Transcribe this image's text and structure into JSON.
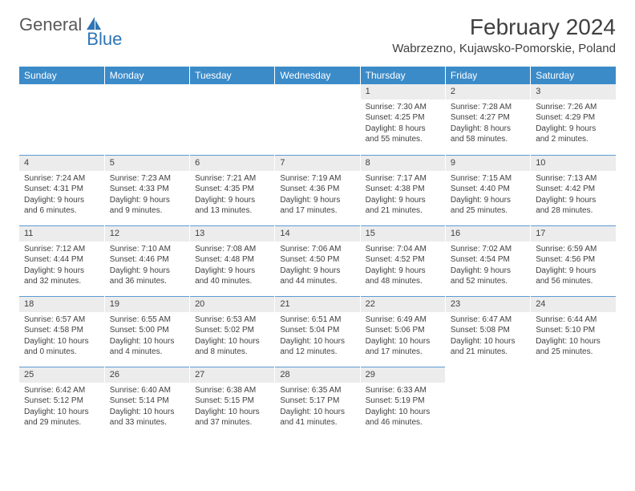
{
  "brand": {
    "word1": "General",
    "word2": "Blue"
  },
  "colors": {
    "header_bg": "#3b8bc9",
    "daynum_bg": "#ececec",
    "row_border": "#5b9bd5",
    "text": "#404040",
    "brand_gray": "#595959",
    "brand_blue": "#2e75b6"
  },
  "title": "February 2024",
  "location": "Wabrzezno, Kujawsko-Pomorskie, Poland",
  "weekdays": [
    "Sunday",
    "Monday",
    "Tuesday",
    "Wednesday",
    "Thursday",
    "Friday",
    "Saturday"
  ],
  "weeks": [
    [
      null,
      null,
      null,
      null,
      {
        "n": "1",
        "sr": "7:30 AM",
        "ss": "4:25 PM",
        "dl": "8 hours and 55 minutes."
      },
      {
        "n": "2",
        "sr": "7:28 AM",
        "ss": "4:27 PM",
        "dl": "8 hours and 58 minutes."
      },
      {
        "n": "3",
        "sr": "7:26 AM",
        "ss": "4:29 PM",
        "dl": "9 hours and 2 minutes."
      }
    ],
    [
      {
        "n": "4",
        "sr": "7:24 AM",
        "ss": "4:31 PM",
        "dl": "9 hours and 6 minutes."
      },
      {
        "n": "5",
        "sr": "7:23 AM",
        "ss": "4:33 PM",
        "dl": "9 hours and 9 minutes."
      },
      {
        "n": "6",
        "sr": "7:21 AM",
        "ss": "4:35 PM",
        "dl": "9 hours and 13 minutes."
      },
      {
        "n": "7",
        "sr": "7:19 AM",
        "ss": "4:36 PM",
        "dl": "9 hours and 17 minutes."
      },
      {
        "n": "8",
        "sr": "7:17 AM",
        "ss": "4:38 PM",
        "dl": "9 hours and 21 minutes."
      },
      {
        "n": "9",
        "sr": "7:15 AM",
        "ss": "4:40 PM",
        "dl": "9 hours and 25 minutes."
      },
      {
        "n": "10",
        "sr": "7:13 AM",
        "ss": "4:42 PM",
        "dl": "9 hours and 28 minutes."
      }
    ],
    [
      {
        "n": "11",
        "sr": "7:12 AM",
        "ss": "4:44 PM",
        "dl": "9 hours and 32 minutes."
      },
      {
        "n": "12",
        "sr": "7:10 AM",
        "ss": "4:46 PM",
        "dl": "9 hours and 36 minutes."
      },
      {
        "n": "13",
        "sr": "7:08 AM",
        "ss": "4:48 PM",
        "dl": "9 hours and 40 minutes."
      },
      {
        "n": "14",
        "sr": "7:06 AM",
        "ss": "4:50 PM",
        "dl": "9 hours and 44 minutes."
      },
      {
        "n": "15",
        "sr": "7:04 AM",
        "ss": "4:52 PM",
        "dl": "9 hours and 48 minutes."
      },
      {
        "n": "16",
        "sr": "7:02 AM",
        "ss": "4:54 PM",
        "dl": "9 hours and 52 minutes."
      },
      {
        "n": "17",
        "sr": "6:59 AM",
        "ss": "4:56 PM",
        "dl": "9 hours and 56 minutes."
      }
    ],
    [
      {
        "n": "18",
        "sr": "6:57 AM",
        "ss": "4:58 PM",
        "dl": "10 hours and 0 minutes."
      },
      {
        "n": "19",
        "sr": "6:55 AM",
        "ss": "5:00 PM",
        "dl": "10 hours and 4 minutes."
      },
      {
        "n": "20",
        "sr": "6:53 AM",
        "ss": "5:02 PM",
        "dl": "10 hours and 8 minutes."
      },
      {
        "n": "21",
        "sr": "6:51 AM",
        "ss": "5:04 PM",
        "dl": "10 hours and 12 minutes."
      },
      {
        "n": "22",
        "sr": "6:49 AM",
        "ss": "5:06 PM",
        "dl": "10 hours and 17 minutes."
      },
      {
        "n": "23",
        "sr": "6:47 AM",
        "ss": "5:08 PM",
        "dl": "10 hours and 21 minutes."
      },
      {
        "n": "24",
        "sr": "6:44 AM",
        "ss": "5:10 PM",
        "dl": "10 hours and 25 minutes."
      }
    ],
    [
      {
        "n": "25",
        "sr": "6:42 AM",
        "ss": "5:12 PM",
        "dl": "10 hours and 29 minutes."
      },
      {
        "n": "26",
        "sr": "6:40 AM",
        "ss": "5:14 PM",
        "dl": "10 hours and 33 minutes."
      },
      {
        "n": "27",
        "sr": "6:38 AM",
        "ss": "5:15 PM",
        "dl": "10 hours and 37 minutes."
      },
      {
        "n": "28",
        "sr": "6:35 AM",
        "ss": "5:17 PM",
        "dl": "10 hours and 41 minutes."
      },
      {
        "n": "29",
        "sr": "6:33 AM",
        "ss": "5:19 PM",
        "dl": "10 hours and 46 minutes."
      },
      null,
      null
    ]
  ],
  "labels": {
    "sunrise": "Sunrise: ",
    "sunset": "Sunset: ",
    "daylight": "Daylight: "
  }
}
